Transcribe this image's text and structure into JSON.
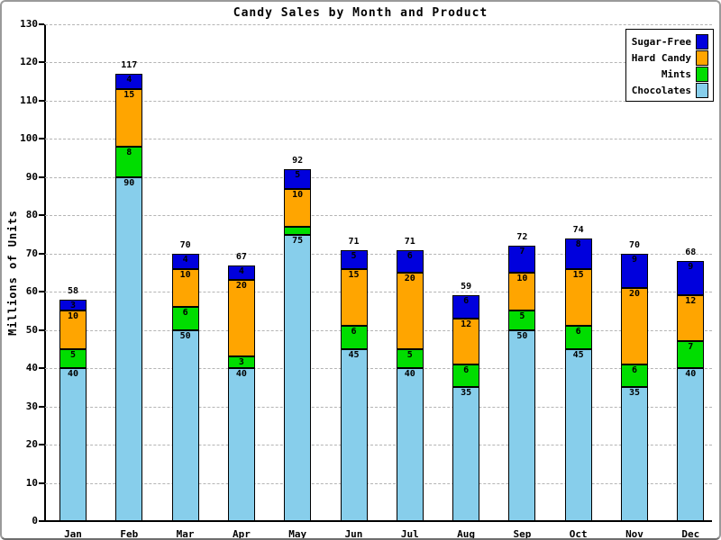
{
  "chart_data": {
    "type": "bar",
    "stacked": true,
    "title": "Candy Sales by Month and Product",
    "xlabel": "",
    "ylabel": "Millions of Units",
    "categories": [
      "Jan",
      "Feb",
      "Mar",
      "Apr",
      "May",
      "Jun",
      "Jul",
      "Aug",
      "Sep",
      "Oct",
      "Nov",
      "Dec"
    ],
    "series": [
      {
        "name": "Chocolates",
        "color": "#87CEEB",
        "values": [
          40,
          90,
          50,
          40,
          75,
          45,
          40,
          35,
          50,
          45,
          35,
          40
        ]
      },
      {
        "name": "Mints",
        "color": "#00DD00",
        "values": [
          5,
          8,
          6,
          3,
          2,
          6,
          5,
          6,
          5,
          6,
          6,
          7
        ]
      },
      {
        "name": "Hard Candy",
        "color": "#FFA500",
        "values": [
          10,
          15,
          10,
          20,
          10,
          15,
          20,
          12,
          10,
          15,
          20,
          12
        ]
      },
      {
        "name": "Sugar-Free",
        "color": "#0000DD",
        "values": [
          3,
          4,
          4,
          4,
          5,
          5,
          6,
          6,
          7,
          8,
          9,
          9
        ]
      }
    ],
    "totals": [
      58,
      117,
      70,
      67,
      92,
      71,
      71,
      59,
      72,
      74,
      70,
      68
    ],
    "ylim": [
      0,
      130
    ],
    "ytick_step": 10,
    "grid": true,
    "legend_position": "top-right",
    "legend_order": [
      "Sugar-Free",
      "Hard Candy",
      "Mints",
      "Chocolates"
    ],
    "min_label_value": 3
  }
}
